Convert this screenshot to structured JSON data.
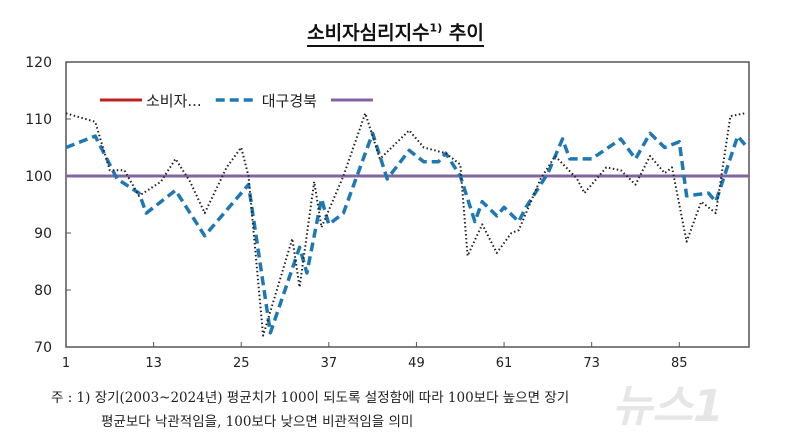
{
  "chart_data": {
    "type": "line",
    "title": "소비자심리지수",
    "title_sup": "1)",
    "title_suffix": " 추이",
    "ylim": [
      70,
      120
    ],
    "yticks": [
      70,
      80,
      90,
      100,
      110,
      120
    ],
    "xlim": [
      1,
      94
    ],
    "xticks": [
      1,
      13,
      25,
      37,
      49,
      61,
      73,
      85
    ],
    "grid": false,
    "legend_position": "top-left",
    "legend": [
      {
        "name": "소비자...",
        "color": "#c0201e",
        "style": "solid"
      },
      {
        "name": "대구경북",
        "color": "#1f78b4",
        "style": "dashed"
      },
      {
        "name": "",
        "color": "#8064a2",
        "style": "solid"
      }
    ],
    "reference_line": {
      "y": 100,
      "color": "#8064a2"
    },
    "series": [
      {
        "name": "대구경북",
        "color": "#1f78b4",
        "style": "dashed",
        "points": [
          [
            1,
            105
          ],
          [
            5,
            107
          ],
          [
            8,
            99.5
          ],
          [
            11,
            97
          ],
          [
            12,
            93.5
          ],
          [
            16,
            97.5
          ],
          [
            20,
            89.5
          ],
          [
            26,
            98.5
          ],
          [
            29,
            72.5
          ],
          [
            33,
            87.5
          ],
          [
            34,
            83
          ],
          [
            36,
            96
          ],
          [
            37,
            91.5
          ],
          [
            39,
            93.5
          ],
          [
            43,
            107.5
          ],
          [
            45,
            99.5
          ],
          [
            48,
            104.5
          ],
          [
            50,
            102.5
          ],
          [
            52,
            102.5
          ],
          [
            53,
            104
          ],
          [
            55,
            100
          ],
          [
            57,
            92
          ],
          [
            58,
            95.5
          ],
          [
            60,
            93
          ],
          [
            61,
            94.5
          ],
          [
            63,
            92
          ],
          [
            64,
            94.5
          ],
          [
            67,
            100.5
          ],
          [
            69,
            106.5
          ],
          [
            70,
            103
          ],
          [
            73,
            103
          ],
          [
            77,
            106.5
          ],
          [
            79,
            103
          ],
          [
            81,
            107.5
          ],
          [
            83,
            105
          ],
          [
            85,
            106
          ],
          [
            86,
            96.5
          ],
          [
            89,
            97
          ],
          [
            90,
            95.5
          ],
          [
            93,
            107
          ],
          [
            94,
            105.5
          ]
        ]
      },
      {
        "color": "#222222",
        "style": "dotted",
        "points": [
          [
            1,
            111
          ],
          [
            5,
            109.5
          ],
          [
            7,
            101
          ],
          [
            9,
            101
          ],
          [
            11,
            96.5
          ],
          [
            14,
            99
          ],
          [
            16,
            103
          ],
          [
            18,
            99
          ],
          [
            20,
            93.5
          ],
          [
            23,
            101.5
          ],
          [
            25,
            105
          ],
          [
            26,
            100
          ],
          [
            28,
            72
          ],
          [
            32,
            89
          ],
          [
            33,
            80.5
          ],
          [
            35,
            99
          ],
          [
            36,
            91
          ],
          [
            39,
            100
          ],
          [
            42,
            111
          ],
          [
            44,
            103
          ],
          [
            48,
            108
          ],
          [
            50,
            105
          ],
          [
            53,
            104
          ],
          [
            55,
            102
          ],
          [
            56,
            86
          ],
          [
            58,
            91.5
          ],
          [
            60,
            86.5
          ],
          [
            62,
            90
          ],
          [
            63,
            90.5
          ],
          [
            66,
            99.5
          ],
          [
            68,
            103.5
          ],
          [
            71,
            99.5
          ],
          [
            72,
            97
          ],
          [
            75,
            101.5
          ],
          [
            77,
            101
          ],
          [
            79,
            98.5
          ],
          [
            81,
            103.5
          ],
          [
            83,
            100.5
          ],
          [
            84,
            101.5
          ],
          [
            86,
            88.5
          ],
          [
            88,
            95.5
          ],
          [
            90,
            93.5
          ],
          [
            92,
            110.5
          ],
          [
            94,
            111
          ]
        ]
      }
    ]
  },
  "notes": {
    "line1": "주 : 1) 장기(2003~2024년) 평균치가 100이 되도록 설정함에 따라 100보다 높으면 장기",
    "line2": "평균보다 낙관적임을, 100보다 낮으면 비관적임을 의미"
  },
  "watermark": "뉴스1"
}
